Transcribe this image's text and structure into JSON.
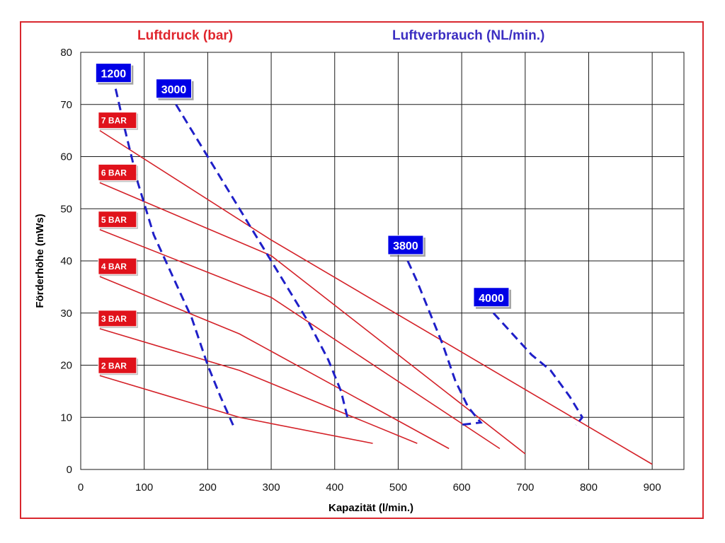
{
  "header": {
    "left_title": "Luftdruck (bar)",
    "right_title": "Luftverbrauch (NL/min.)"
  },
  "colors": {
    "frame": "#d9272e",
    "pressure_line": "#d42128",
    "pressure_badge": "#e0121b",
    "consumption_line": "#1f1fc8",
    "consumption_badge": "#0000e6",
    "left_title": "#e0262d",
    "right_title": "#3c2fc2",
    "grid": "#1a1a1a"
  },
  "chart_data": {
    "type": "line",
    "xlabel": "Kapazität (l/min.)",
    "ylabel": "Förderhöhe (mWs)",
    "xlim": [
      0,
      950
    ],
    "ylim": [
      0,
      80
    ],
    "x_ticks": [
      "0",
      "100",
      "200",
      "300",
      "400",
      "500",
      "600",
      "700",
      "800",
      "900"
    ],
    "y_ticks": [
      "0",
      "10",
      "20",
      "30",
      "40",
      "50",
      "60",
      "70",
      "80"
    ],
    "grid": true,
    "pressure_series": [
      {
        "name": "2 BAR",
        "points": [
          [
            30,
            18
          ],
          [
            250,
            10
          ],
          [
            460,
            5
          ]
        ]
      },
      {
        "name": "3 BAR",
        "points": [
          [
            30,
            27
          ],
          [
            250,
            19
          ],
          [
            530,
            5
          ]
        ]
      },
      {
        "name": "4 BAR",
        "points": [
          [
            30,
            37
          ],
          [
            250,
            26
          ],
          [
            580,
            4
          ]
        ]
      },
      {
        "name": "5 BAR",
        "points": [
          [
            30,
            46
          ],
          [
            300,
            33
          ],
          [
            660,
            4
          ]
        ]
      },
      {
        "name": "6 BAR",
        "points": [
          [
            30,
            55
          ],
          [
            300,
            41
          ],
          [
            700,
            3
          ]
        ]
      },
      {
        "name": "7 BAR",
        "points": [
          [
            30,
            65
          ],
          [
            300,
            44
          ],
          [
            900,
            1
          ]
        ]
      }
    ],
    "consumption_series": [
      {
        "name": "1200",
        "points": [
          [
            55,
            73
          ],
          [
            70,
            65
          ],
          [
            90,
            55
          ],
          [
            115,
            45
          ],
          [
            145,
            37
          ],
          [
            175,
            29
          ],
          [
            200,
            20
          ],
          [
            220,
            14
          ],
          [
            240,
            8.5
          ]
        ]
      },
      {
        "name": "3000",
        "points": [
          [
            150,
            70
          ],
          [
            180,
            64
          ],
          [
            210,
            58
          ],
          [
            240,
            52
          ],
          [
            270,
            46
          ],
          [
            300,
            40
          ],
          [
            330,
            34
          ],
          [
            360,
            28
          ],
          [
            390,
            21
          ],
          [
            410,
            15
          ],
          [
            420,
            10
          ]
        ]
      },
      {
        "name": "3800",
        "points": [
          [
            515,
            40
          ],
          [
            530,
            36
          ],
          [
            550,
            30
          ],
          [
            570,
            24
          ],
          [
            590,
            17
          ],
          [
            610,
            12
          ],
          [
            630,
            9
          ],
          [
            595,
            8.5
          ]
        ]
      },
      {
        "name": "4000",
        "points": [
          [
            650,
            30
          ],
          [
            680,
            26
          ],
          [
            710,
            22
          ],
          [
            740,
            19
          ],
          [
            770,
            14
          ],
          [
            790,
            10
          ],
          [
            780,
            8.5
          ]
        ]
      }
    ]
  }
}
